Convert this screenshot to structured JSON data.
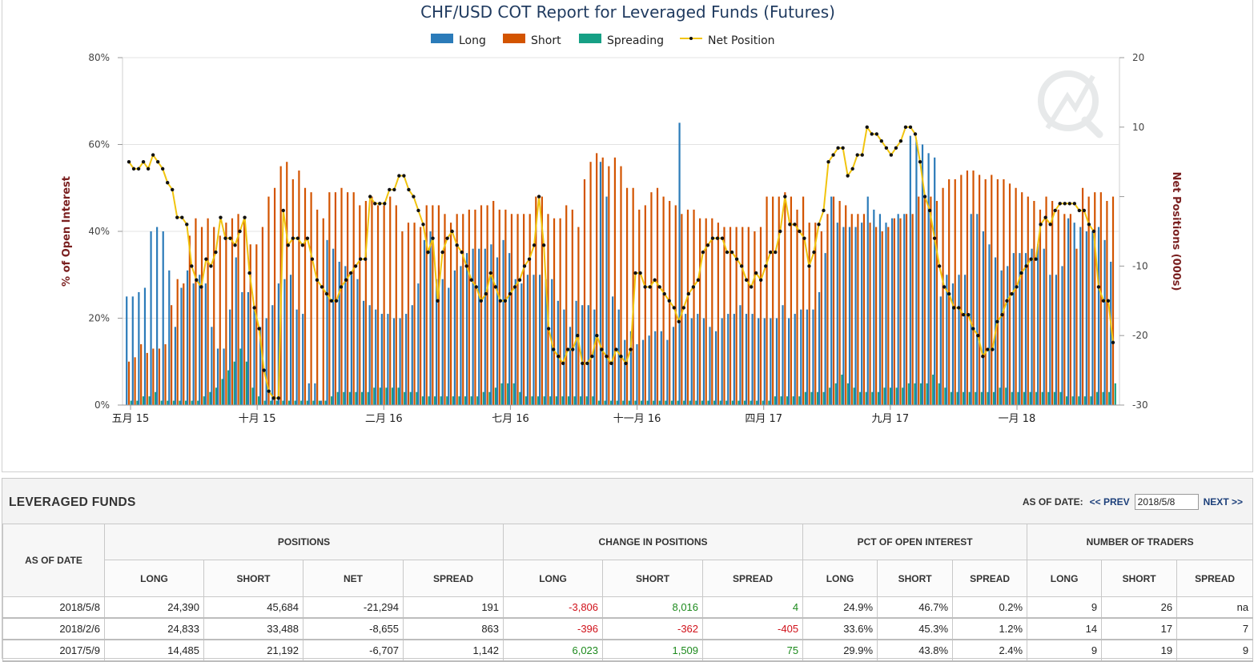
{
  "chart_data": {
    "type": "bar",
    "title": "CHF/USD COT Report for Leveraged Funds (Futures)",
    "legend": [
      "Long",
      "Short",
      "Spreading",
      "Net Position"
    ],
    "legend_position": "top-center",
    "ylabel_left": "% of Open Interest",
    "ylabel_right": "Net Positions (000s)",
    "ylim_left": [
      0,
      80
    ],
    "ylim_right": [
      -30,
      20
    ],
    "yticks_left": [
      "0%",
      "20%",
      "40%",
      "60%",
      "80%"
    ],
    "yticks_right": [
      "-30",
      "-20",
      "-10",
      "10",
      "20"
    ],
    "xticks": [
      "五月 15",
      "十月 15",
      "二月 16",
      "七月 16",
      "十一月 16",
      "四月 17",
      "九月 17",
      "一月 18"
    ],
    "colors": {
      "long": "#2b7bb9",
      "short": "#d35400",
      "spreading": "#16a085",
      "net": "#f1c40f"
    },
    "series": [
      {
        "name": "Long",
        "values": [
          25,
          25,
          26,
          27,
          40,
          41,
          40,
          31,
          18,
          27,
          31,
          28,
          30,
          28,
          18,
          13,
          13,
          22,
          34,
          26,
          26,
          23,
          18,
          20,
          23,
          28,
          29,
          30,
          22,
          21,
          5,
          5,
          1,
          38,
          36,
          33,
          32,
          30,
          29,
          24,
          23,
          22,
          21,
          21,
          20,
          20,
          21,
          23,
          28,
          38,
          40,
          29,
          29,
          27,
          31,
          32,
          35,
          36,
          36,
          36,
          37,
          34,
          38,
          35,
          29,
          28,
          30,
          30,
          30,
          29,
          29,
          24,
          22,
          18,
          24,
          23,
          23,
          22,
          56,
          48,
          25,
          22,
          15,
          17,
          14,
          15,
          16,
          17,
          17,
          15,
          18,
          65,
          21,
          20,
          21,
          20,
          18,
          17,
          20,
          21,
          21,
          23,
          21,
          21,
          20,
          20,
          20,
          20,
          23,
          20,
          21,
          22,
          22,
          22,
          26,
          35,
          48,
          42,
          41,
          41,
          41,
          42,
          48,
          45,
          44,
          42,
          43,
          44,
          44,
          62,
          61,
          60,
          58,
          57,
          25,
          30,
          28,
          30,
          30,
          44,
          44,
          40,
          37,
          34,
          31,
          32,
          35,
          35,
          35,
          36,
          37,
          36,
          30,
          30,
          32,
          43,
          42,
          41,
          40,
          40,
          41,
          38,
          33
        ]
      },
      {
        "name": "Short",
        "values": [
          10,
          11,
          14,
          12,
          13,
          13,
          14,
          23,
          29,
          28,
          39,
          43,
          41,
          43,
          41,
          39,
          42,
          43,
          44,
          43,
          37,
          37,
          41,
          48,
          50,
          55,
          56,
          52,
          54,
          50,
          49,
          45,
          43,
          49,
          49,
          50,
          49,
          49,
          46,
          47,
          48,
          46,
          46,
          48,
          46,
          40,
          42,
          42,
          41,
          46,
          46,
          46,
          44,
          42,
          44,
          44,
          45,
          45,
          46,
          46,
          47,
          45,
          45,
          44,
          44,
          44,
          44,
          48,
          48,
          44,
          43,
          43,
          46,
          45,
          41,
          52,
          56,
          58,
          57,
          55,
          57,
          55,
          50,
          50,
          45,
          46,
          49,
          50,
          48,
          47,
          46,
          44,
          45,
          45,
          43,
          43,
          43,
          42,
          41,
          41,
          41,
          41,
          41,
          40,
          41,
          48,
          48,
          48,
          49,
          48,
          45,
          48,
          42,
          42,
          40,
          44,
          48,
          47,
          46,
          44,
          44,
          44,
          42,
          41,
          40,
          41,
          43,
          43,
          44,
          44,
          48,
          48,
          48,
          47,
          50,
          52,
          52,
          53,
          54,
          54,
          53,
          52,
          53,
          52,
          52,
          51,
          50,
          49,
          48,
          47,
          45,
          48,
          47,
          45,
          44,
          44,
          36,
          50,
          48,
          49,
          49,
          47,
          48,
          47,
          46
        ]
      },
      {
        "name": "Spreading",
        "values": [
          1,
          1,
          2,
          2,
          3,
          1,
          1,
          1,
          1,
          1,
          1,
          1,
          2,
          3,
          4,
          6,
          8,
          10,
          13,
          10,
          4,
          2,
          1,
          1,
          1,
          1,
          1,
          1,
          1,
          1,
          1,
          1,
          1,
          2,
          3,
          3,
          3,
          3,
          3,
          3,
          4,
          4,
          4,
          4,
          4,
          3,
          3,
          3,
          2,
          2,
          2,
          2,
          2,
          2,
          2,
          2,
          2,
          2,
          3,
          3,
          4,
          5,
          5,
          5,
          3,
          2,
          2,
          2,
          2,
          2,
          2,
          2,
          2,
          2,
          2,
          2,
          2,
          1,
          1,
          1,
          1,
          1,
          1,
          1,
          1,
          1,
          1,
          1,
          1,
          1,
          1,
          1,
          1,
          1,
          1,
          1,
          1,
          1,
          1,
          1,
          1,
          1,
          1,
          1,
          1,
          1,
          2,
          2,
          2,
          2,
          2,
          3,
          3,
          3,
          3,
          4,
          5,
          7,
          5,
          4,
          3,
          3,
          3,
          3,
          4,
          4,
          4,
          4,
          5,
          5,
          5,
          5,
          7,
          5,
          4,
          3,
          3,
          3,
          3,
          3,
          3,
          3,
          3,
          4,
          4,
          3,
          3,
          3,
          3,
          3,
          3,
          3,
          3,
          3,
          2,
          2,
          2,
          2,
          2,
          3,
          3,
          3,
          5,
          2,
          1
        ]
      },
      {
        "name": "Net Position",
        "values": [
          5,
          4,
          4,
          5,
          4,
          6,
          5,
          4,
          2,
          1,
          -3,
          -3,
          -4,
          -10,
          -12,
          -13,
          -9,
          -10,
          -8,
          -3,
          -6,
          -6,
          -7,
          -5,
          -3,
          -11,
          -16,
          -19,
          -25,
          -28,
          -29,
          -29,
          -2,
          -7,
          -6,
          -6,
          -7,
          -6,
          -9,
          -12,
          -13,
          -14,
          -15,
          -15,
          -13,
          -12,
          -11,
          -10,
          -9,
          -9,
          0,
          -1,
          -1,
          -1,
          1,
          1,
          3,
          3,
          1,
          0,
          -2,
          -4,
          -8,
          -6,
          -15,
          -8,
          -6,
          -5,
          -7,
          -8,
          -10,
          -12,
          -13,
          -15,
          -14,
          -11,
          -13,
          -15,
          -15,
          -14,
          -13,
          -12,
          -10,
          -9,
          -7,
          0,
          -7,
          -19,
          -22,
          -23,
          -24,
          -22,
          -22,
          -20,
          -24,
          -24,
          -23,
          -20,
          -22,
          -23,
          -24,
          -22,
          -23,
          -24,
          -22,
          -11,
          -11,
          -13,
          -13,
          -12,
          -13,
          -14,
          -15,
          -16,
          -18,
          -16,
          -14,
          -13,
          -12,
          -8,
          -7,
          -6,
          -6,
          -6,
          -8,
          -8,
          -9,
          -10,
          -12,
          -13,
          -11,
          -12,
          -10,
          -8,
          -8,
          -5,
          0,
          -4,
          -4,
          -5,
          -6,
          -10,
          -8,
          -4,
          -2,
          5,
          6,
          7,
          7,
          3,
          4,
          6,
          6,
          10,
          9,
          9,
          8,
          7,
          6,
          7,
          8,
          10,
          10,
          9,
          5,
          0,
          -2,
          -6,
          -10,
          -13,
          -14,
          -16,
          -16,
          -17,
          -17,
          -19,
          -20,
          -23,
          -22,
          -22,
          -18,
          -17,
          -15,
          -14,
          -13,
          -11,
          -10,
          -9,
          -9,
          -4,
          -3,
          -4,
          -2,
          -1,
          -1,
          -1,
          -1,
          -2,
          -2,
          -4,
          -5,
          -13,
          -15,
          -15,
          -21
        ]
      }
    ]
  },
  "table": {
    "title": "LEVERAGED FUNDS",
    "as_of_label": "AS OF DATE:",
    "prev_label": "<< PREV",
    "next_label": "NEXT >>",
    "date_value": "2018/5/8",
    "date_col": "AS OF DATE",
    "groups": [
      "POSITIONS",
      "CHANGE IN POSITIONS",
      "PCT OF OPEN INTEREST",
      "NUMBER OF TRADERS"
    ],
    "sub": {
      "positions": [
        "LONG",
        "SHORT",
        "NET",
        "SPREAD"
      ],
      "change": [
        "LONG",
        "SHORT",
        "SPREAD"
      ],
      "pct": [
        "LONG",
        "SHORT",
        "SPREAD"
      ],
      "traders": [
        "LONG",
        "SHORT",
        "SPREAD"
      ]
    },
    "rows": [
      {
        "date": "2018/5/8",
        "long": "24,390",
        "short": "45,684",
        "net": "-21,294",
        "spread": "191",
        "ch_long": "-3,806",
        "ch_short": "8,016",
        "ch_spread": "4",
        "pct_long": "24.9%",
        "pct_short": "46.7%",
        "pct_spread": "0.2%",
        "tr_long": "9",
        "tr_short": "26",
        "tr_spread": "na"
      },
      {
        "date": "2018/2/6",
        "long": "24,833",
        "short": "33,488",
        "net": "-8,655",
        "spread": "863",
        "ch_long": "-396",
        "ch_short": "-362",
        "ch_spread": "-405",
        "pct_long": "33.6%",
        "pct_short": "45.3%",
        "pct_spread": "1.2%",
        "tr_long": "14",
        "tr_short": "17",
        "tr_spread": "7"
      },
      {
        "date": "2017/5/9",
        "long": "14,485",
        "short": "21,192",
        "net": "-6,707",
        "spread": "1,142",
        "ch_long": "6,023",
        "ch_short": "1,509",
        "ch_spread": "75",
        "pct_long": "29.9%",
        "pct_short": "43.8%",
        "pct_spread": "2.4%",
        "tr_long": "9",
        "tr_short": "19",
        "tr_spread": "9"
      }
    ]
  }
}
